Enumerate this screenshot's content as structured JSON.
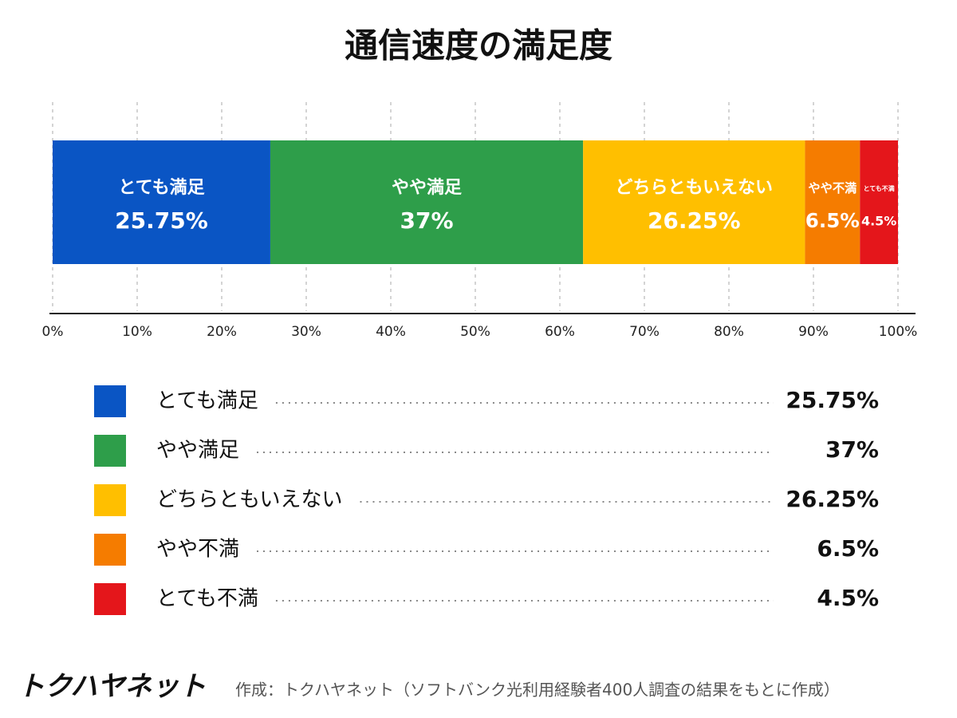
{
  "chart_data": {
    "type": "stacked-bar-100",
    "title": "通信速度の満足度",
    "series": [
      {
        "name": "とても満足",
        "color": "#0a55c4",
        "values": [
          25.75
        ],
        "value_labels": [
          "25.75%"
        ]
      },
      {
        "name": "やや満足",
        "color": "#2e9e4a",
        "values": [
          37
        ],
        "value_labels": [
          "37%"
        ]
      },
      {
        "name": "どちらともいえない",
        "color": "#ffbf00",
        "values": [
          26.25
        ],
        "value_labels": [
          "26.25%"
        ]
      },
      {
        "name": "やや不満",
        "color": "#f57c00",
        "values": [
          6.5
        ],
        "value_labels": [
          "6.5%"
        ]
      },
      {
        "name": "とても不満",
        "color": "#e4161b",
        "values": [
          4.5
        ],
        "value_labels": [
          "4.5%"
        ]
      }
    ],
    "xlim": [
      0,
      100
    ],
    "xticks": [
      {
        "value": 0,
        "label": "0%"
      },
      {
        "value": 10,
        "label": "10%"
      },
      {
        "value": 20,
        "label": "20%"
      },
      {
        "value": 30,
        "label": "30%"
      },
      {
        "value": 40,
        "label": "40%"
      },
      {
        "value": 50,
        "label": "50%"
      },
      {
        "value": 60,
        "label": "60%"
      },
      {
        "value": 70,
        "label": "70%"
      },
      {
        "value": 80,
        "label": "80%"
      },
      {
        "value": 90,
        "label": "90%"
      },
      {
        "value": 100,
        "label": "100%"
      }
    ],
    "grid": true
  },
  "footer": {
    "logo": "トクハヤネット",
    "source": "作成：トクハヤネット（ソフトバンク光利用経験者400人調査の結果をもとに作成）"
  }
}
